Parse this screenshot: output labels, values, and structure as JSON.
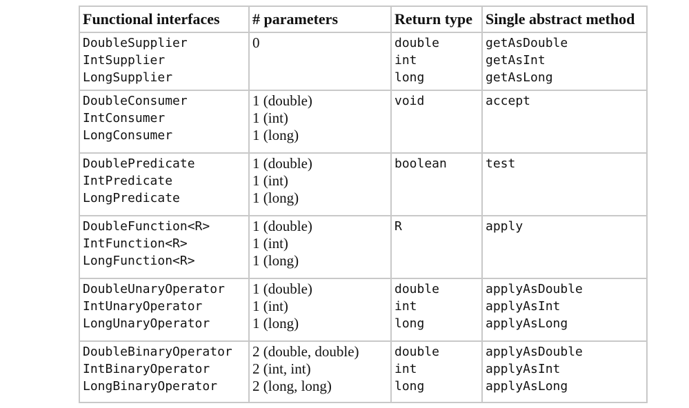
{
  "headers": [
    "Functional interfaces",
    "# parameters",
    "Return type",
    "Single abstract method"
  ],
  "rows": [
    {
      "interfaces": [
        "DoubleSupplier",
        "IntSupplier",
        "LongSupplier"
      ],
      "params": [
        "0"
      ],
      "returns": [
        "double",
        "int",
        "long"
      ],
      "methods": [
        "getAsDouble",
        "getAsInt",
        "getAsLong"
      ]
    },
    {
      "interfaces": [
        "DoubleConsumer",
        "IntConsumer",
        "LongConsumer"
      ],
      "params": [
        "1 (double)",
        "1 (int)",
        "1 (long)"
      ],
      "returns": [
        "void"
      ],
      "methods": [
        "accept"
      ]
    },
    {
      "interfaces": [
        "DoublePredicate",
        "IntPredicate",
        "LongPredicate"
      ],
      "params": [
        "1 (double)",
        "1 (int)",
        "1 (long)"
      ],
      "returns": [
        "boolean"
      ],
      "methods": [
        "test"
      ]
    },
    {
      "interfaces": [
        "DoubleFunction<R>",
        "IntFunction<R>",
        "LongFunction<R>"
      ],
      "params": [
        "1 (double)",
        "1 (int)",
        "1 (long)"
      ],
      "returns": [
        "R"
      ],
      "methods": [
        "apply"
      ]
    },
    {
      "interfaces": [
        "DoubleUnaryOperator",
        "IntUnaryOperator",
        "LongUnaryOperator"
      ],
      "params": [
        "1 (double)",
        "1 (int)",
        "1 (long)"
      ],
      "returns": [
        "double",
        "int",
        "long"
      ],
      "methods": [
        "applyAsDouble",
        "applyAsInt",
        "applyAsLong"
      ]
    },
    {
      "interfaces": [
        "DoubleBinaryOperator",
        "IntBinaryOperator",
        "LongBinaryOperator"
      ],
      "params": [
        "2 (double, double)",
        "2 (int, int)",
        "2 (long, long)"
      ],
      "returns": [
        "double",
        "int",
        "long"
      ],
      "methods": [
        "applyAsDouble",
        "applyAsInt",
        "applyAsLong"
      ]
    }
  ]
}
